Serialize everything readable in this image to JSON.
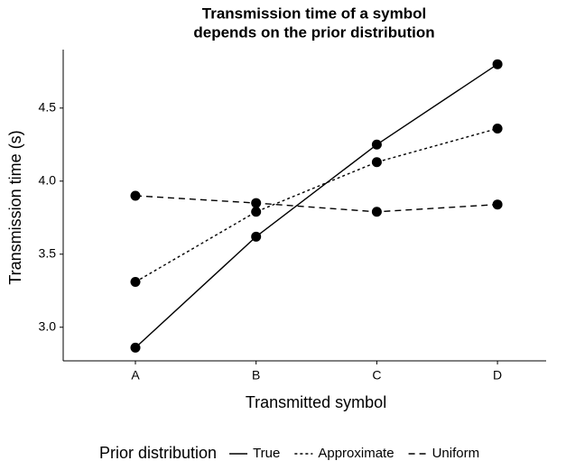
{
  "chart_data": {
    "type": "line",
    "title": [
      "Transmission time of a symbol",
      "depends on the prior distribution"
    ],
    "xlabel": "Transmitted symbol",
    "ylabel": "Transmission time (s)",
    "categories": [
      "A",
      "B",
      "C",
      "D"
    ],
    "ylim": [
      2.77,
      4.9
    ],
    "yticks": [
      {
        "value": 3,
        "label": "3.0"
      },
      3.5,
      {
        "value": 4,
        "label": "4.0"
      },
      4.5
    ],
    "legend_title": "Prior distribution",
    "legend_position": "bottom",
    "series": [
      {
        "name": "True",
        "color": "#000000",
        "dash": "solid",
        "values": [
          2.86,
          3.62,
          4.25,
          4.8
        ]
      },
      {
        "name": "Approximate",
        "color": "#000000",
        "dash": "dotted",
        "values": [
          3.31,
          3.79,
          4.13,
          4.36
        ]
      },
      {
        "name": "Uniform",
        "color": "#000000",
        "dash": "dashed",
        "values": [
          3.9,
          3.85,
          3.79,
          3.84
        ]
      }
    ]
  }
}
